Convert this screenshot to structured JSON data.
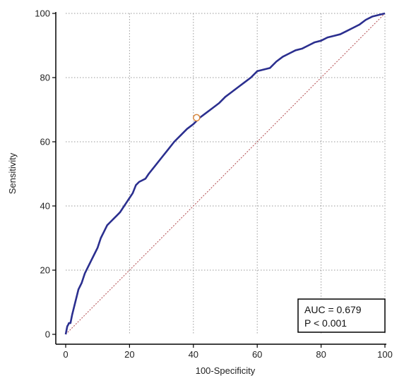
{
  "chart_data": {
    "type": "line",
    "xlabel": "100-Specificity",
    "ylabel": "Sensitivity",
    "xlim": [
      0,
      100
    ],
    "ylim": [
      0,
      100
    ],
    "xticks": [
      "0",
      "20",
      "40",
      "60",
      "80",
      "100"
    ],
    "yticks": [
      "0",
      "20",
      "40",
      "60",
      "80",
      "100"
    ],
    "grid": true,
    "series": [
      {
        "color": "#2b2f8f",
        "x": [
          0,
          0.3,
          0.5,
          0.8,
          1,
          1.5,
          2,
          2.5,
          3,
          3.5,
          4,
          4.5,
          5,
          5.5,
          6,
          7,
          8,
          9,
          10,
          11,
          12,
          13,
          14,
          15,
          16,
          17,
          18,
          19,
          20,
          21,
          22,
          23,
          24,
          25,
          26,
          28,
          30,
          32,
          34,
          36,
          38,
          40,
          42,
          44,
          46,
          48,
          50,
          52,
          54,
          56,
          58,
          60,
          62,
          64,
          66,
          68,
          70,
          72,
          74,
          76,
          78,
          80,
          82,
          84,
          86,
          88,
          90,
          92,
          94,
          96,
          98,
          100
        ],
        "y": [
          0,
          1.5,
          2.5,
          3,
          3.5,
          3.5,
          6,
          8,
          10,
          12,
          14,
          15,
          16,
          17.5,
          19,
          21,
          23,
          25,
          27,
          30,
          32,
          34,
          35,
          36,
          37,
          38,
          39.5,
          41,
          42.5,
          44,
          46.5,
          47.5,
          48,
          48.5,
          50,
          52.5,
          55,
          57.5,
          60,
          62,
          64,
          65.5,
          67.5,
          69,
          70.5,
          72,
          74,
          75.5,
          77,
          78.5,
          80,
          82,
          82.5,
          83,
          85,
          86.5,
          87.5,
          88.5,
          89,
          90,
          91,
          91.5,
          92.5,
          93,
          93.5,
          94.5,
          95.5,
          96.5,
          98,
          99,
          99.5,
          100
        ]
      }
    ],
    "reference_line": {
      "x": [
        0,
        100
      ],
      "y": [
        0,
        100
      ],
      "color": "#b0474b"
    },
    "cutoff_point": {
      "x": 41,
      "y": 67.5,
      "color": "#d9883f"
    },
    "annotations": [
      "AUC = 0.679",
      "P < 0.001"
    ],
    "legend_position": "bottom-right"
  }
}
